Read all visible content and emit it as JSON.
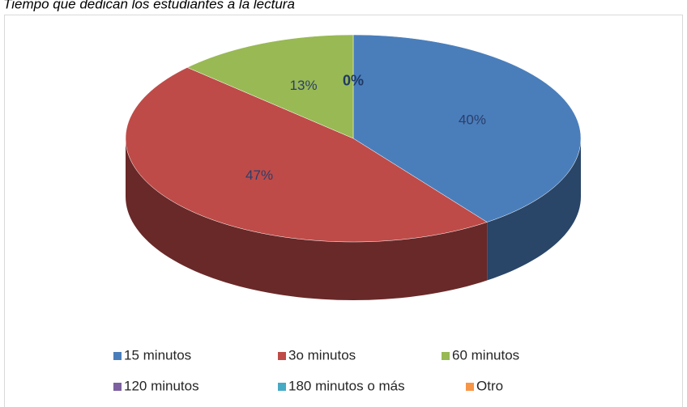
{
  "chart_data": {
    "type": "pie",
    "title": "Tiempo que dedican los estudiantes a la lectura",
    "categories": [
      "15 minutos",
      "3o minutos",
      "60 minutos",
      "120 minutos",
      "180 minutos o más",
      "Otro"
    ],
    "values": [
      40,
      47,
      13,
      0,
      0,
      0
    ],
    "value_labels": [
      "40%",
      "47%",
      "13%",
      "0%",
      null,
      null
    ],
    "colors": [
      "#4a7ebb",
      "#be4b48",
      "#98b954",
      "#7d60a0",
      "#46aac5",
      "#f79646"
    ],
    "legend": "bottom"
  }
}
